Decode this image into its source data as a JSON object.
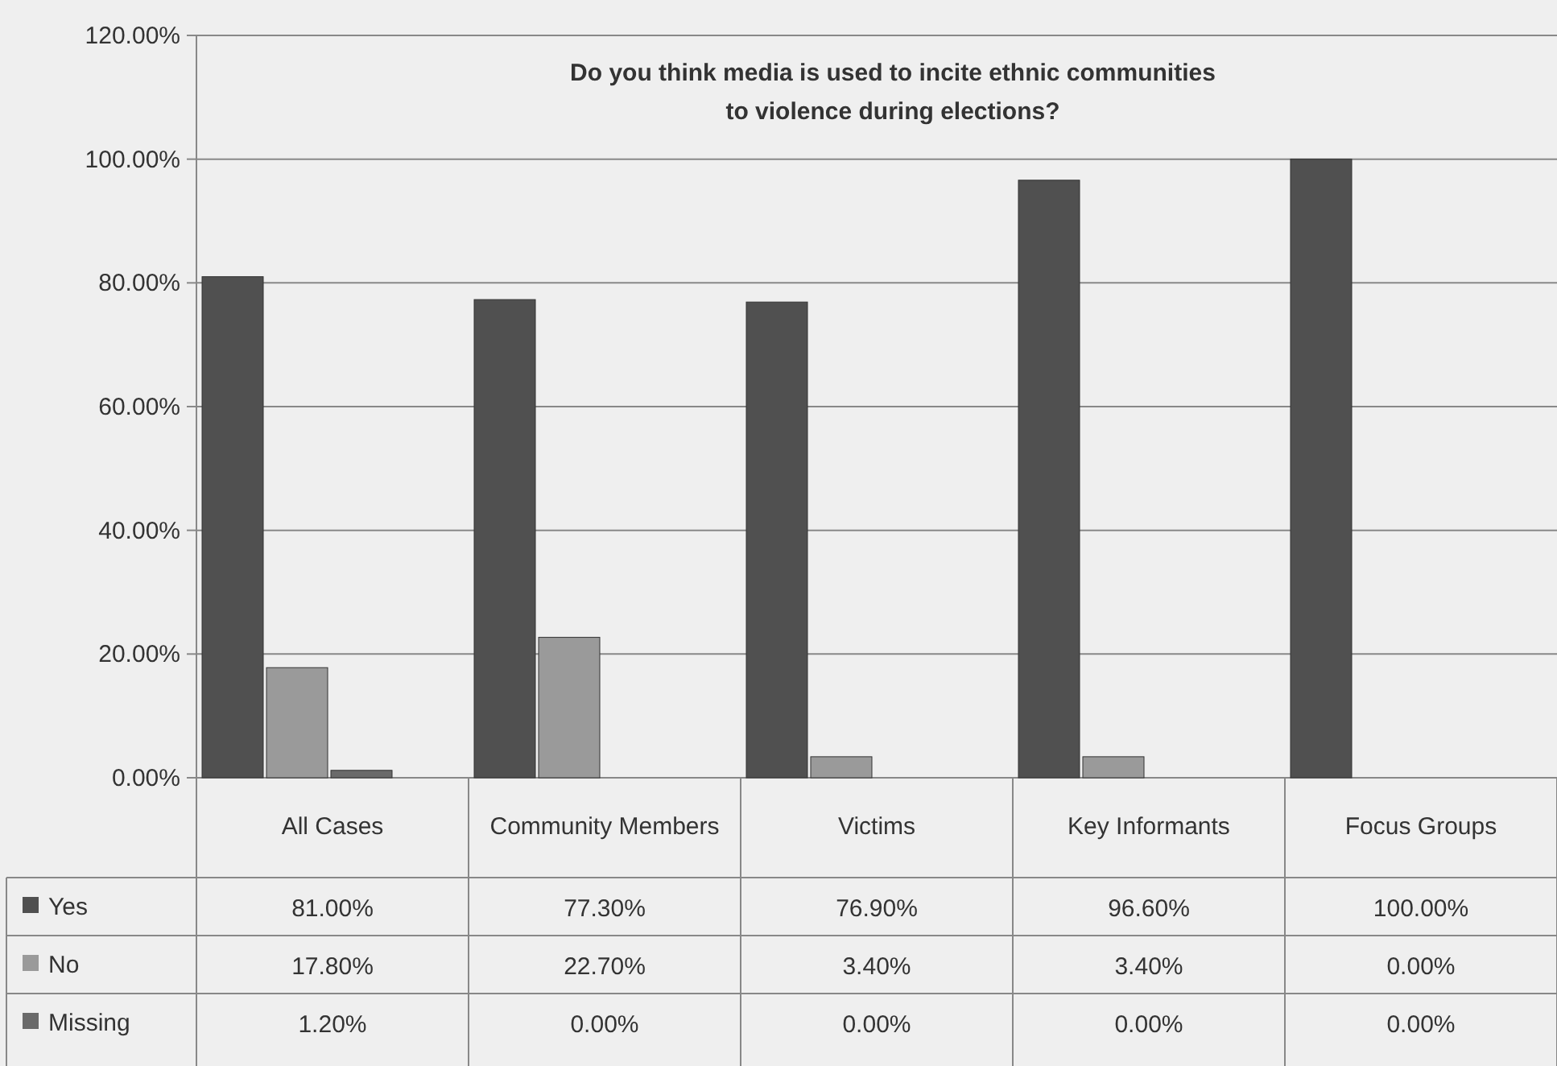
{
  "chart_data": {
    "type": "bar",
    "title": "Do you think media is used to incite ethnic communities to violence during elections?",
    "categories": [
      "All Cases",
      "Community Members",
      "Victims",
      "Key Informants",
      "Focus Groups"
    ],
    "series": [
      {
        "name": "Yes",
        "color": "#505050",
        "values": [
          81.0,
          77.3,
          76.9,
          96.6,
          100.0
        ],
        "value_labels": [
          "81.00%",
          "77.30%",
          "76.90%",
          "96.60%",
          "100.00%"
        ]
      },
      {
        "name": "No",
        "color": "#9a9a9a",
        "values": [
          17.8,
          22.7,
          3.4,
          3.4,
          0.0
        ],
        "value_labels": [
          "17.80%",
          "22.70%",
          "3.40%",
          "3.40%",
          "0.00%"
        ]
      },
      {
        "name": "Missing",
        "color": "#6a6a6a",
        "values": [
          1.2,
          0.0,
          0.0,
          0.0,
          0.0
        ],
        "value_labels": [
          "1.20%",
          "0.00%",
          "0.00%",
          "0.00%",
          "0.00%"
        ]
      }
    ],
    "ylim": [
      0,
      120
    ],
    "yticks": [
      {
        "value": 0,
        "label": "0.00%"
      },
      {
        "value": 20,
        "label": "20.00%"
      },
      {
        "value": 40,
        "label": "40.00%"
      },
      {
        "value": 60,
        "label": "60.00%"
      },
      {
        "value": 80,
        "label": "80.00%"
      },
      {
        "value": 100,
        "label": "100.00%"
      },
      {
        "value": 120,
        "label": "120.00%"
      }
    ],
    "grid": "y",
    "legend": "bottom"
  }
}
